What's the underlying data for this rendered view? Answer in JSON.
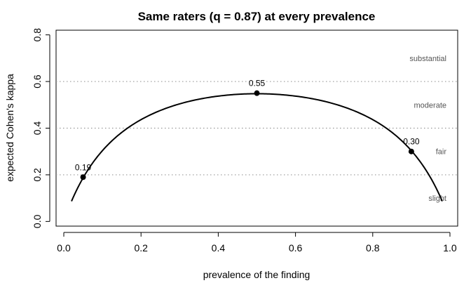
{
  "chart_data": {
    "type": "line",
    "title": "Same raters (q = 0.87) at every prevalence",
    "xlabel": "prevalence of the finding",
    "ylabel": "expected Cohen's kappa",
    "xlim": [
      -0.02,
      1.02
    ],
    "ylim": [
      -0.02,
      0.82
    ],
    "x_ticks": [
      "0.0",
      "0.2",
      "0.4",
      "0.6",
      "0.8",
      "1.0"
    ],
    "y_ticks": [
      "0.0",
      "0.2",
      "0.4",
      "0.6",
      "0.8"
    ],
    "reference_lines": [
      0.2,
      0.4,
      0.6
    ],
    "reference_line_style": "dotted",
    "band_labels": [
      {
        "text": "slight",
        "y": 0.1
      },
      {
        "text": "fair",
        "y": 0.3
      },
      {
        "text": "moderate",
        "y": 0.5
      },
      {
        "text": "substantial",
        "y": 0.7
      }
    ],
    "curve": {
      "q": 0.87,
      "x_range": [
        0.02,
        0.98
      ],
      "color": "#000000"
    },
    "highlighted_points": [
      {
        "x": 0.05,
        "y": 0.19,
        "label": "0.19"
      },
      {
        "x": 0.5,
        "y": 0.55,
        "label": "0.55"
      },
      {
        "x": 0.9,
        "y": 0.3,
        "label": "0.30"
      }
    ],
    "grid": false,
    "legend": "none"
  }
}
